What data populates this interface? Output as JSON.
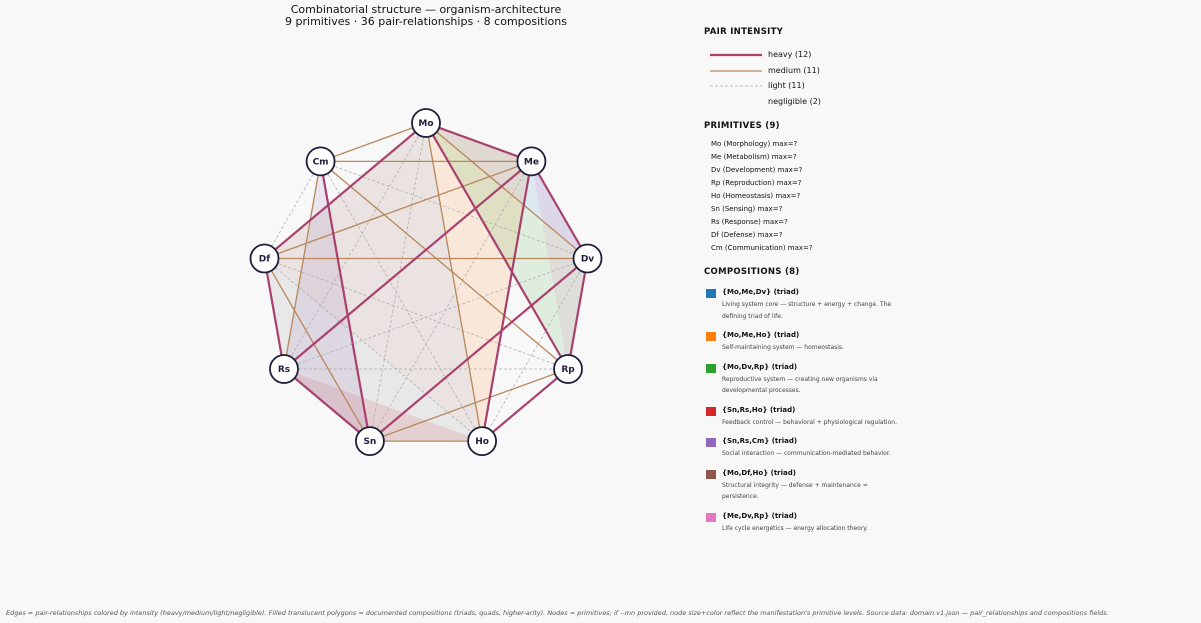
{
  "title": {
    "line1": "Combinatorial structure — organism-architecture",
    "line2": "9 primitives  ·  36 pair-relationships  ·  8 compositions"
  },
  "colors": {
    "heavy": "#a8416e",
    "medium": "#b8875c",
    "light": "#aaaaaa",
    "node_fill": "#ffffff",
    "node_stroke": "#1f1d3a",
    "comp_colors": [
      "#1f77b4",
      "#ff7f0e",
      "#2ca02c",
      "#d62728",
      "#9467bd",
      "#8c564b",
      "#e377c2",
      "#7f7f7f"
    ]
  },
  "nodes": [
    "Mo",
    "Me",
    "Dv",
    "Rp",
    "Ho",
    "Sn",
    "Rs",
    "Df",
    "Cm"
  ],
  "edges": {
    "heavy": [
      [
        "Mo",
        "Me"
      ],
      [
        "Mo",
        "Df"
      ],
      [
        "Mo",
        "Rp"
      ],
      [
        "Me",
        "Dv"
      ],
      [
        "Me",
        "Ho"
      ],
      [
        "Me",
        "Rs"
      ],
      [
        "Dv",
        "Rp"
      ],
      [
        "Dv",
        "Sn"
      ],
      [
        "Rs",
        "Sn"
      ],
      [
        "Rs",
        "Df"
      ],
      [
        "Cm",
        "Sn"
      ],
      [
        "Ho",
        "Rp"
      ]
    ],
    "medium": [
      [
        "Mo",
        "Cm"
      ],
      [
        "Mo",
        "Dv"
      ],
      [
        "Mo",
        "Ho"
      ],
      [
        "Cm",
        "Me"
      ],
      [
        "Cm",
        "Rs"
      ],
      [
        "Cm",
        "Rp"
      ],
      [
        "Df",
        "Me"
      ],
      [
        "Df",
        "Dv"
      ],
      [
        "Df",
        "Sn"
      ],
      [
        "Sn",
        "Ho"
      ],
      [
        "Sn",
        "Rp"
      ]
    ],
    "light": [
      [
        "Mo",
        "Rs"
      ],
      [
        "Mo",
        "Sn"
      ],
      [
        "Cm",
        "Df"
      ],
      [
        "Cm",
        "Dv"
      ],
      [
        "Cm",
        "Ho"
      ],
      [
        "Df",
        "Rp"
      ],
      [
        "Df",
        "Ho"
      ],
      [
        "Rs",
        "Rp"
      ],
      [
        "Me",
        "Sn"
      ],
      [
        "Dv",
        "Ho"
      ],
      [
        "Dv",
        "Rs"
      ]
    ]
  },
  "legend": {
    "pair_intensity": {
      "heading": "PAIR INTENSITY",
      "items": [
        {
          "key": "heavy",
          "label": "heavy (12)"
        },
        {
          "key": "medium",
          "label": "medium (11)"
        },
        {
          "key": "light",
          "label": "light (11)"
        },
        {
          "key": "negligible",
          "label": "negligible (2)"
        }
      ]
    },
    "primitives": {
      "heading": "PRIMITIVES (9)",
      "items": [
        "Mo  (Morphology)  max=?",
        "Me  (Metabolism)  max=?",
        "Dv  (Development)  max=?",
        "Rp  (Reproduction)  max=?",
        "Ho  (Homeostasis)  max=?",
        "Sn  (Sensing)  max=?",
        "Rs  (Response)  max=?",
        "Df  (Defense)  max=?",
        "Cm  (Communication)  max=?"
      ]
    },
    "compositions": {
      "heading": "COMPOSITIONS (8)",
      "items": [
        {
          "name": "{Mo,Me,Dv} (triad)",
          "members": [
            "Mo",
            "Me",
            "Dv"
          ],
          "color": "#1f77b4",
          "desc": [
            "Living system core — structure + energy + change. The",
            "defining triad of life."
          ]
        },
        {
          "name": "{Mo,Me,Ho} (triad)",
          "members": [
            "Mo",
            "Me",
            "Ho"
          ],
          "color": "#ff7f0e",
          "desc": [
            "Self-maintaining system — homeostasis."
          ]
        },
        {
          "name": "{Mo,Dv,Rp} (triad)",
          "members": [
            "Mo",
            "Dv",
            "Rp"
          ],
          "color": "#2ca02c",
          "desc": [
            "Reproductive system — creating new organisms via",
            "developmental processes."
          ]
        },
        {
          "name": "{Sn,Rs,Ho} (triad)",
          "members": [
            "Sn",
            "Rs",
            "Ho"
          ],
          "color": "#d62728",
          "desc": [
            "Feedback control — behavioral + physiological regulation."
          ]
        },
        {
          "name": "{Sn,Rs,Cm} (triad)",
          "members": [
            "Sn",
            "Rs",
            "Cm"
          ],
          "color": "#9467bd",
          "desc": [
            "Social interaction — communication-mediated behavior."
          ]
        },
        {
          "name": "{Mo,Df,Ho} (triad)",
          "members": [
            "Mo",
            "Df",
            "Ho"
          ],
          "color": "#8c564b",
          "desc": [
            "Structural integrity — defense + maintenance =",
            "persistence."
          ]
        },
        {
          "name": "{Me,Dv,Rp} (triad)",
          "members": [
            "Me",
            "Dv",
            "Rp"
          ],
          "color": "#e377c2",
          "desc": [
            "Life cycle energetics — energy allocation theory."
          ]
        },
        {
          "name": "",
          "members": [
            "Df",
            "Rs",
            "Sn",
            "Ho"
          ],
          "color": "#7f7f7f",
          "desc": []
        }
      ]
    }
  },
  "footer": "Edges = pair-relationships colored by intensity (heavy/medium/light/negligible). Filled translucent polygons = documented compositions (triads, quads, higher-arity). Nodes = primitives; if --mn provided, node size+color reflect the manifestation's primitive levels. Source data: domain.v1.json — pair_relationships and compositions fields."
}
